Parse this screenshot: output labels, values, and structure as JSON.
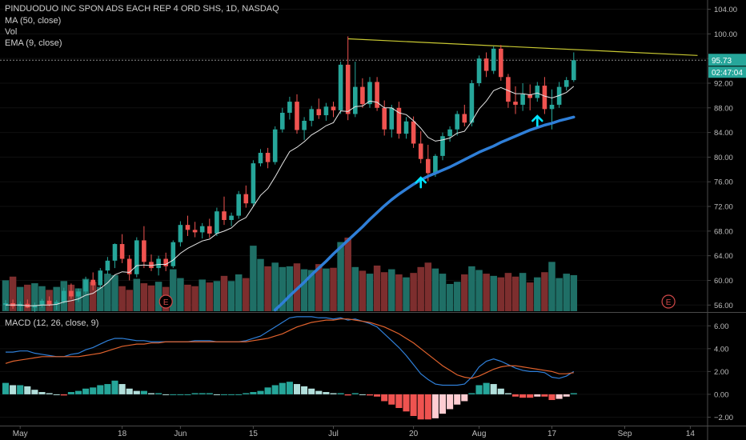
{
  "header": {
    "title": "PINDUODUO INC SPON ADS EACH REP 4 ORD SHS, 1D, NASDAQ",
    "indicators": [
      "MA (50, close)",
      "Vol",
      "EMA (9, close)"
    ],
    "macd_label": "MACD (12, 26, close, 9)"
  },
  "price_badges": {
    "last_price": "95.73",
    "countdown": "02:47:04"
  },
  "earnings_marker": "E",
  "colors": {
    "background": "#000000",
    "up": "#26a69a",
    "down": "#ef5350",
    "ma50": "#2f7fd8",
    "ema9": "#e6e6e6",
    "trendline": "#c8c832",
    "arrow": "#00e5ff",
    "macd_line": "#2f7fd8",
    "signal_line": "#e0622d",
    "last_badge": "#26a69a"
  },
  "chart_data": [
    {
      "type": "candlestick",
      "title": "PINDUODUO INC SPON ADS EACH REP 4 ORD SHS, 1D, NASDAQ",
      "y_ticks": [
        56,
        60,
        64,
        68,
        72,
        76,
        80,
        84,
        88,
        92,
        96,
        100,
        104
      ],
      "y_tick_labels": [
        "56.00",
        "60.00",
        "64.00",
        "68.00",
        "72.00",
        "76.00",
        "80.00",
        "84.00",
        "88.00",
        "92.00",
        "96.00",
        "100.00",
        "104.00"
      ],
      "ylim": [
        55,
        105.5
      ],
      "x_tick_labels": [
        "May",
        "18",
        "Jun",
        "15",
        "Jul",
        "20",
        "Aug",
        "17",
        "Sep",
        "14"
      ],
      "x_tick_index": [
        2,
        16,
        24,
        34,
        45,
        56,
        65,
        75,
        85,
        94
      ],
      "ohlc": [
        [
          56.0,
          56.8,
          55.2,
          56.3
        ],
        [
          56.3,
          56.9,
          55.4,
          55.8
        ],
        [
          55.8,
          56.6,
          55.0,
          56.2
        ],
        [
          56.2,
          56.9,
          55.5,
          55.6
        ],
        [
          55.6,
          56.4,
          54.9,
          56.0
        ],
        [
          56.0,
          57.0,
          55.6,
          56.7
        ],
        [
          56.7,
          57.4,
          55.8,
          56.1
        ],
        [
          56.1,
          56.8,
          55.2,
          56.5
        ],
        [
          56.5,
          58.8,
          56.2,
          58.3
        ],
        [
          58.3,
          59.5,
          57.0,
          57.4
        ],
        [
          57.4,
          58.7,
          56.5,
          58.2
        ],
        [
          58.2,
          60.6,
          57.8,
          60.1
        ],
        [
          60.1,
          61.3,
          58.4,
          59.2
        ],
        [
          59.2,
          62.0,
          58.7,
          61.6
        ],
        [
          61.6,
          63.8,
          61.0,
          63.2
        ],
        [
          63.2,
          66.0,
          62.0,
          65.9
        ],
        [
          65.9,
          67.5,
          62.8,
          63.5
        ],
        [
          63.5,
          64.1,
          60.0,
          61.0
        ],
        [
          61.0,
          67.0,
          60.5,
          66.5
        ],
        [
          66.5,
          68.8,
          62.0,
          63.0
        ],
        [
          63.0,
          64.2,
          61.5,
          62.0
        ],
        [
          62.0,
          64.0,
          60.8,
          63.5
        ],
        [
          63.5,
          64.5,
          61.5,
          62.3
        ],
        [
          62.3,
          66.5,
          62.0,
          66.2
        ],
        [
          66.2,
          69.6,
          65.5,
          69.0
        ],
        [
          69.0,
          70.5,
          67.2,
          68.2
        ],
        [
          68.2,
          69.5,
          67.0,
          67.8
        ],
        [
          67.8,
          69.3,
          66.8,
          68.8
        ],
        [
          68.8,
          70.0,
          66.9,
          67.6
        ],
        [
          67.6,
          71.8,
          67.2,
          71.2
        ],
        [
          71.2,
          73.6,
          69.0,
          69.8
        ],
        [
          69.8,
          71.0,
          68.8,
          70.5
        ],
        [
          70.5,
          74.5,
          70.0,
          74.0
        ],
        [
          74.0,
          75.4,
          71.8,
          72.5
        ],
        [
          72.5,
          79.5,
          72.0,
          79.0
        ],
        [
          79.0,
          81.3,
          78.5,
          80.7
        ],
        [
          80.7,
          81.5,
          78.2,
          79.2
        ],
        [
          79.2,
          85.0,
          78.8,
          84.5
        ],
        [
          84.5,
          88.0,
          84.0,
          87.2
        ],
        [
          87.2,
          89.8,
          86.1,
          89.0
        ],
        [
          89.0,
          90.2,
          83.8,
          84.4
        ],
        [
          84.4,
          86.5,
          82.8,
          85.9
        ],
        [
          85.9,
          88.3,
          85.0,
          87.8
        ],
        [
          87.8,
          89.5,
          86.2,
          86.8
        ],
        [
          86.8,
          88.8,
          85.9,
          88.2
        ],
        [
          88.2,
          89.0,
          86.5,
          87.6
        ],
        [
          87.6,
          95.5,
          87.0,
          95.0
        ],
        [
          95.0,
          99.6,
          86.0,
          87.0
        ],
        [
          87.0,
          95.5,
          86.5,
          91.4
        ],
        [
          91.4,
          92.8,
          88.0,
          88.6
        ],
        [
          88.6,
          93.0,
          88.0,
          92.2
        ],
        [
          92.2,
          93.0,
          87.5,
          88.0
        ],
        [
          88.0,
          89.2,
          83.5,
          84.5
        ],
        [
          84.5,
          88.5,
          83.2,
          88.0
        ],
        [
          88.0,
          89.0,
          83.0,
          83.8
        ],
        [
          83.8,
          86.5,
          83.0,
          85.8
        ],
        [
          85.8,
          86.6,
          81.5,
          82.2
        ],
        [
          82.2,
          84.2,
          79.0,
          79.7
        ],
        [
          79.7,
          82.0,
          76.1,
          77.4
        ],
        [
          77.4,
          80.5,
          76.8,
          80.2
        ],
        [
          80.2,
          84.0,
          79.5,
          83.4
        ],
        [
          83.4,
          85.0,
          82.5,
          84.5
        ],
        [
          84.5,
          87.5,
          83.5,
          87.0
        ],
        [
          87.0,
          88.5,
          85.0,
          85.6
        ],
        [
          85.6,
          92.5,
          85.0,
          92.0
        ],
        [
          92.0,
          96.5,
          91.5,
          96.0
        ],
        [
          96.0,
          97.0,
          93.0,
          94.0
        ],
        [
          94.0,
          98.0,
          93.5,
          97.6
        ],
        [
          97.6,
          98.2,
          92.4,
          93.0
        ],
        [
          93.0,
          93.5,
          88.0,
          89.0
        ],
        [
          89.0,
          91.5,
          87.0,
          88.5
        ],
        [
          88.5,
          92.0,
          87.5,
          90.2
        ],
        [
          90.2,
          91.8,
          87.6,
          89.6
        ],
        [
          89.6,
          92.2,
          89.0,
          91.6
        ],
        [
          91.6,
          93.0,
          87.0,
          87.8
        ],
        [
          87.8,
          91.0,
          84.5,
          88.5
        ],
        [
          88.5,
          92.2,
          88.0,
          91.4
        ],
        [
          91.4,
          93.0,
          90.8,
          92.5
        ],
        [
          92.5,
          97.0,
          92.2,
          95.73
        ]
      ],
      "volume": [
        0.42,
        0.47,
        0.33,
        0.36,
        0.38,
        0.34,
        0.29,
        0.33,
        0.41,
        0.36,
        0.31,
        0.44,
        0.4,
        0.33,
        0.51,
        0.49,
        0.34,
        0.29,
        0.44,
        0.38,
        0.35,
        0.4,
        0.33,
        0.57,
        0.45,
        0.36,
        0.34,
        0.43,
        0.39,
        0.41,
        0.48,
        0.41,
        0.5,
        0.45,
        0.89,
        0.71,
        0.61,
        0.66,
        0.6,
        0.61,
        0.65,
        0.57,
        0.56,
        0.64,
        0.58,
        0.59,
        0.94,
        1.0,
        0.6,
        0.55,
        0.51,
        0.62,
        0.53,
        0.57,
        0.5,
        0.46,
        0.52,
        0.6,
        0.66,
        0.58,
        0.51,
        0.37,
        0.4,
        0.5,
        0.61,
        0.56,
        0.51,
        0.48,
        0.46,
        0.52,
        0.47,
        0.52,
        0.39,
        0.46,
        0.53,
        0.67,
        0.45,
        0.51,
        0.49
      ],
      "earnings_index": [
        22,
        91
      ],
      "ma50": {
        "name": "MA (50, close)",
        "start_index": 37,
        "values": [
          55.2,
          56.3,
          57.5,
          58.6,
          59.7,
          60.9,
          62.0,
          63.1,
          64.3,
          65.4,
          66.5,
          67.6,
          68.7,
          69.9,
          71.0,
          72.1,
          73.1,
          74.0,
          74.8,
          75.6,
          76.3,
          76.9,
          77.4,
          77.9,
          78.4,
          79.0,
          79.6,
          80.2,
          80.8,
          81.3,
          81.8,
          82.4,
          82.9,
          83.4,
          83.9,
          84.4,
          84.8,
          85.2,
          85.5,
          85.9,
          86.2,
          86.5
        ]
      },
      "ema9": {
        "name": "EMA (9, close)",
        "values": [
          56.0,
          56.0,
          56.0,
          55.9,
          55.9,
          56.0,
          56.0,
          56.1,
          56.5,
          56.7,
          57.0,
          57.6,
          57.9,
          58.7,
          59.6,
          60.9,
          61.4,
          61.3,
          62.4,
          62.5,
          62.4,
          62.6,
          62.6,
          63.3,
          64.4,
          65.2,
          65.8,
          66.4,
          66.7,
          67.6,
          68.0,
          68.5,
          69.6,
          70.2,
          72.0,
          73.8,
          74.9,
          76.8,
          78.9,
          80.9,
          81.6,
          82.5,
          83.6,
          84.3,
          85.1,
          85.6,
          87.5,
          87.4,
          88.2,
          88.3,
          89.1,
          88.9,
          88.0,
          88.0,
          87.2,
          86.9,
          85.9,
          84.7,
          83.2,
          82.6,
          82.8,
          83.1,
          83.9,
          84.2,
          85.8,
          87.8,
          89.1,
          90.8,
          91.3,
          90.8,
          90.3,
          90.3,
          90.1,
          90.4,
          89.9,
          89.6,
          90.0,
          90.5,
          91.5
        ]
      },
      "trendline": {
        "start": [
          47,
          99.2
        ],
        "end": [
          95,
          96.5
        ]
      },
      "arrows_index": [
        57,
        73
      ]
    },
    {
      "type": "macd",
      "title": "MACD (12, 26, close, 9)",
      "y_ticks": [
        -2,
        0,
        2,
        4,
        6
      ],
      "y_tick_labels": [
        "−2.00",
        "0.00",
        "2.00",
        "4.00",
        "6.00"
      ],
      "ylim": [
        -2.6,
        7.0
      ],
      "macd": [
        3.7,
        3.7,
        3.8,
        3.8,
        3.6,
        3.5,
        3.4,
        3.3,
        3.3,
        3.5,
        3.6,
        3.9,
        4.1,
        4.4,
        4.7,
        4.9,
        4.9,
        4.8,
        4.7,
        4.7,
        4.6,
        4.6,
        4.6,
        4.6,
        4.6,
        4.6,
        4.7,
        4.7,
        4.7,
        4.6,
        4.6,
        4.6,
        4.6,
        4.7,
        4.9,
        5.1,
        5.5,
        5.9,
        6.3,
        6.7,
        6.8,
        6.8,
        6.8,
        6.7,
        6.7,
        6.6,
        6.7,
        6.5,
        6.6,
        6.4,
        6.2,
        5.9,
        5.3,
        4.7,
        4.1,
        3.4,
        2.6,
        1.8,
        1.3,
        0.9,
        0.8,
        0.8,
        0.8,
        0.9,
        1.5,
        2.4,
        2.9,
        3.1,
        2.9,
        2.6,
        2.3,
        2.1,
        2.0,
        2.0,
        1.9,
        1.5,
        1.4,
        1.6,
        2.0
      ],
      "signal": [
        2.7,
        2.9,
        3.0,
        3.1,
        3.2,
        3.3,
        3.3,
        3.3,
        3.3,
        3.3,
        3.3,
        3.4,
        3.5,
        3.6,
        3.8,
        4.0,
        4.2,
        4.3,
        4.4,
        4.4,
        4.5,
        4.5,
        4.6,
        4.6,
        4.6,
        4.6,
        4.6,
        4.6,
        4.6,
        4.6,
        4.6,
        4.6,
        4.6,
        4.6,
        4.7,
        4.8,
        4.9,
        5.1,
        5.3,
        5.6,
        5.9,
        6.1,
        6.3,
        6.4,
        6.5,
        6.5,
        6.6,
        6.6,
        6.5,
        6.4,
        6.3,
        6.1,
        5.9,
        5.6,
        5.3,
        4.9,
        4.5,
        4.0,
        3.5,
        3.0,
        2.5,
        2.1,
        1.7,
        1.5,
        1.4,
        1.6,
        1.9,
        2.2,
        2.4,
        2.5,
        2.5,
        2.4,
        2.3,
        2.2,
        2.1,
        2.0,
        1.8,
        1.8,
        1.9
      ],
      "histogram": [
        1.0,
        0.8,
        0.8,
        0.7,
        0.4,
        0.2,
        0.1,
        0.0,
        -0.1,
        0.2,
        0.3,
        0.5,
        0.6,
        0.8,
        0.9,
        1.2,
        0.9,
        0.5,
        0.3,
        0.3,
        0.1,
        0.1,
        0.0,
        0.0,
        0.0,
        0.0,
        0.1,
        0.1,
        0.1,
        0.0,
        0.0,
        0.0,
        0.0,
        0.1,
        0.2,
        0.3,
        0.6,
        0.8,
        1.0,
        1.1,
        0.9,
        0.7,
        0.5,
        0.3,
        0.2,
        0.1,
        0.1,
        -0.1,
        0.1,
        0.0,
        -0.1,
        -0.2,
        -0.6,
        -0.9,
        -1.2,
        -1.5,
        -1.9,
        -2.2,
        -2.2,
        -2.1,
        -1.7,
        -1.3,
        -0.9,
        -0.6,
        0.1,
        0.8,
        1.0,
        0.9,
        0.5,
        0.1,
        -0.2,
        -0.3,
        -0.3,
        -0.2,
        -0.2,
        -0.5,
        -0.4,
        -0.2,
        0.1
      ]
    }
  ]
}
